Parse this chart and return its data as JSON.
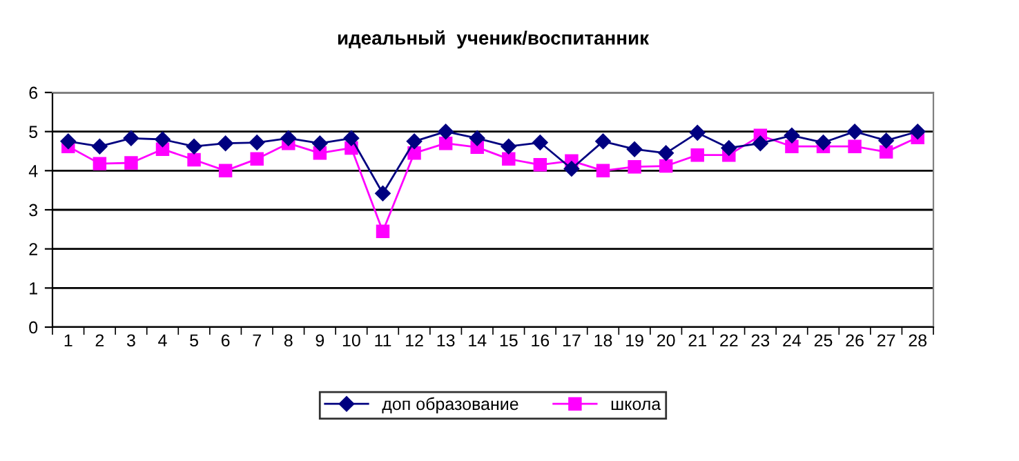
{
  "chart_data": {
    "type": "line",
    "title": "идеальный  ученик/воспитанник",
    "categories": [
      "1",
      "2",
      "3",
      "4",
      "5",
      "6",
      "7",
      "8",
      "9",
      "10",
      "11",
      "12",
      "13",
      "14",
      "15",
      "16",
      "17",
      "18",
      "19",
      "20",
      "21",
      "22",
      "23",
      "24",
      "25",
      "26",
      "27",
      "28"
    ],
    "series": [
      {
        "name": "доп образование",
        "color": "#000080",
        "marker": "diamond",
        "values": [
          4.75,
          4.62,
          4.83,
          4.8,
          4.62,
          4.7,
          4.72,
          4.83,
          4.7,
          4.83,
          3.42,
          4.75,
          5.0,
          4.83,
          4.62,
          4.72,
          4.05,
          4.75,
          4.55,
          4.45,
          4.97,
          4.58,
          4.7,
          4.9,
          4.72,
          5.0,
          4.77,
          5.0
        ]
      },
      {
        "name": "школа",
        "color": "#ff00ff",
        "marker": "square",
        "values": [
          4.62,
          4.18,
          4.2,
          4.55,
          4.28,
          4.0,
          4.3,
          4.7,
          4.45,
          4.58,
          2.45,
          4.45,
          4.7,
          4.6,
          4.3,
          4.15,
          4.25,
          4.0,
          4.1,
          4.12,
          4.4,
          4.4,
          4.9,
          4.62,
          4.62,
          4.62,
          4.48,
          4.85
        ]
      }
    ],
    "ylim": [
      0,
      6
    ],
    "yticks": [
      0,
      1,
      2,
      3,
      4,
      5,
      6
    ],
    "grid": "y",
    "legend": "bottom",
    "line_style": "solid"
  }
}
